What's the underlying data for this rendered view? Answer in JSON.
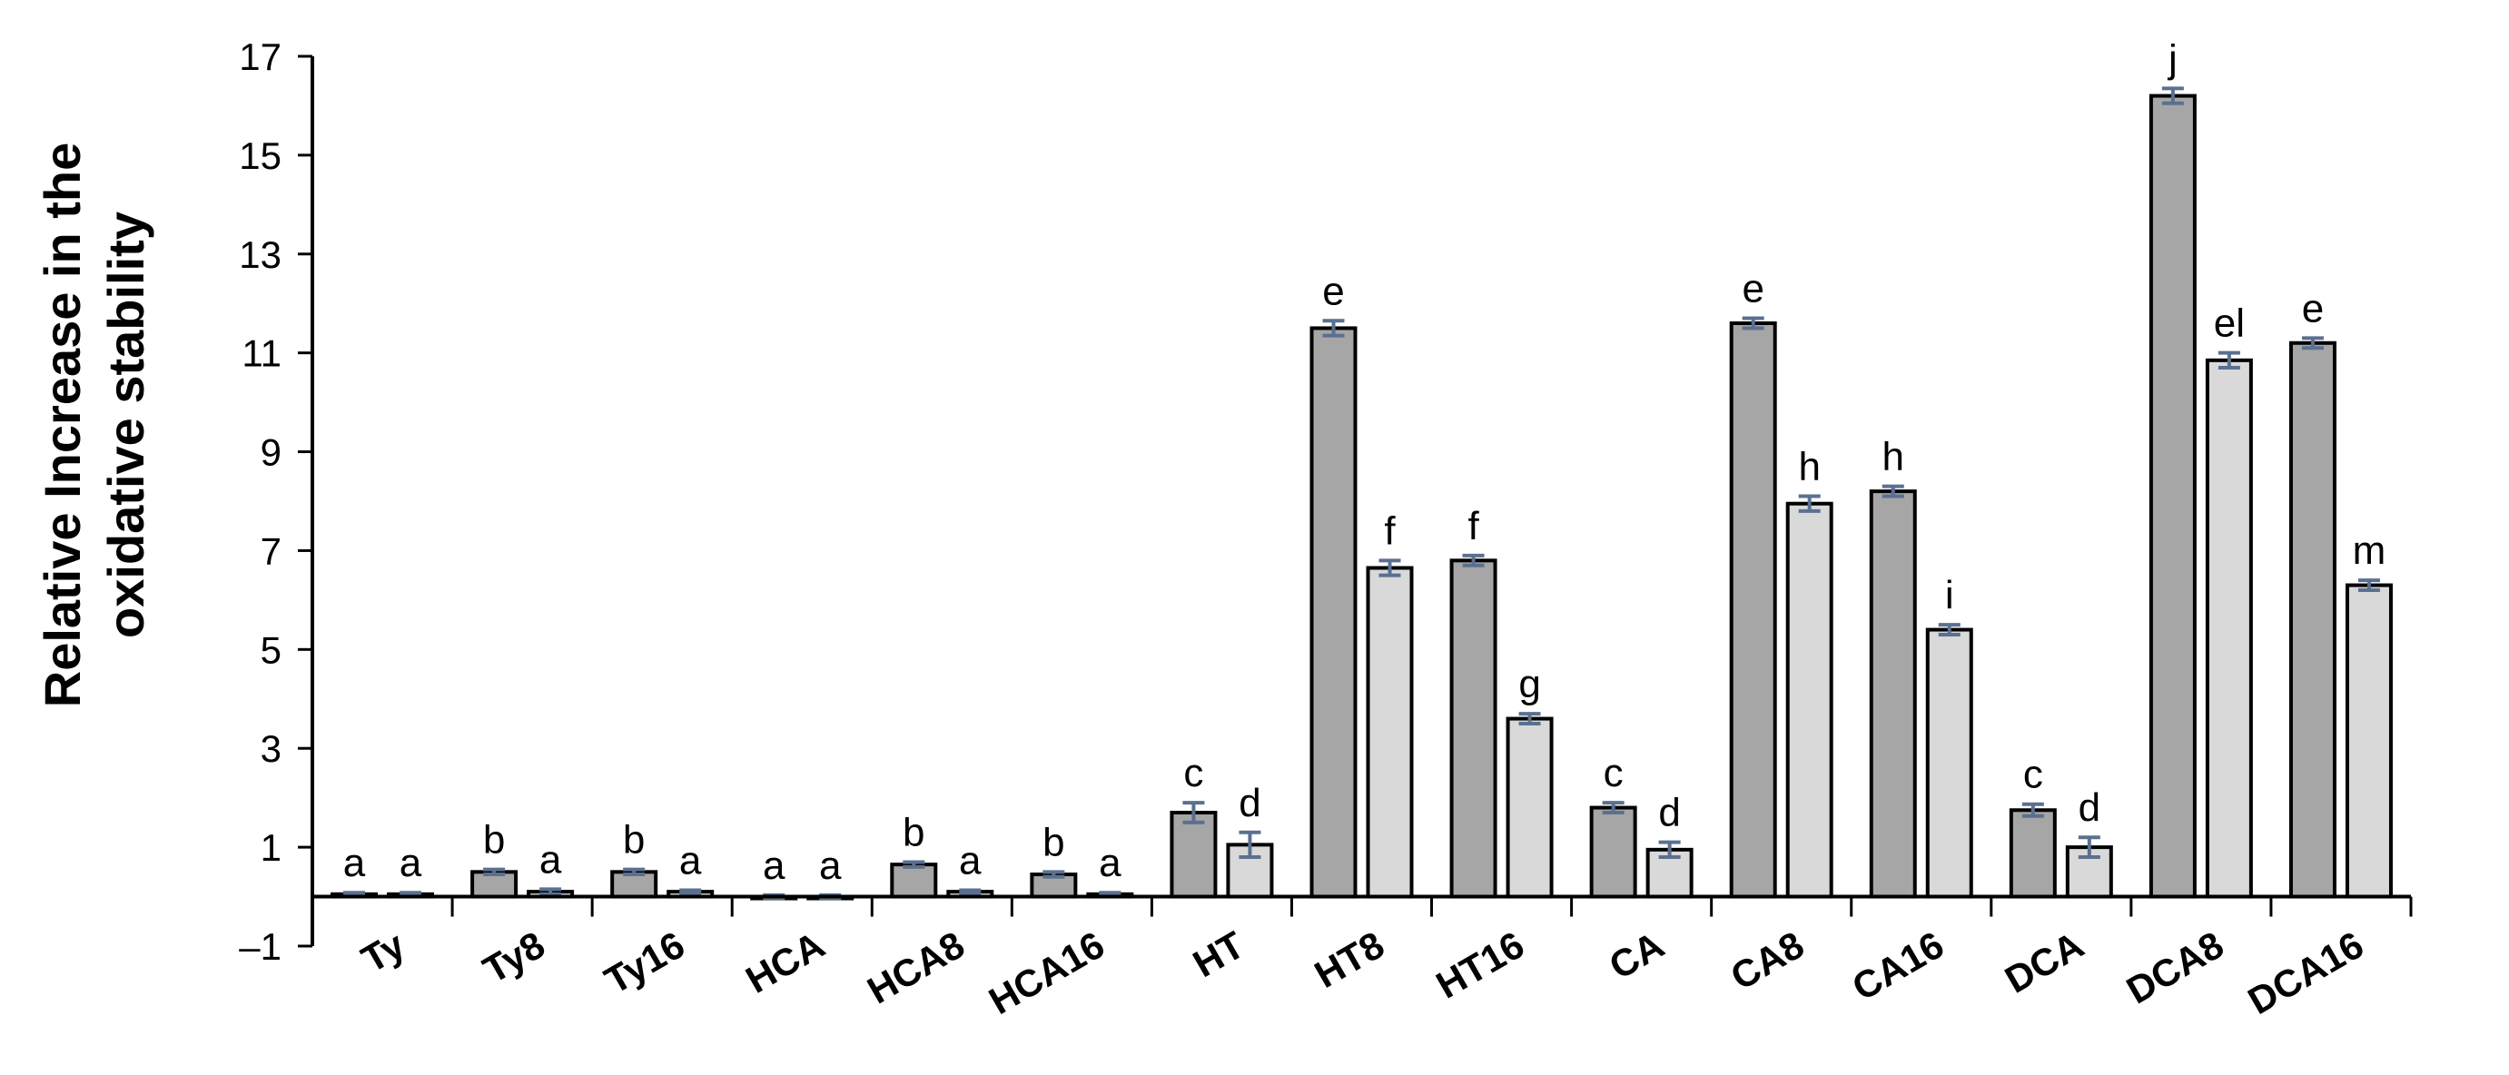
{
  "chart_data": {
    "type": "bar",
    "title": "",
    "xlabel": "",
    "ylabel_lines": [
      "Relative Increase in the",
      "oxidative stability"
    ],
    "ylim": [
      -1,
      17
    ],
    "yticks": [
      -1,
      1,
      3,
      5,
      7,
      9,
      11,
      13,
      15,
      17
    ],
    "ytick_labels": [
      "–1",
      "1",
      "3",
      "5",
      "7",
      "9",
      "11",
      "13",
      "15",
      "17"
    ],
    "grid": false,
    "legend": "none",
    "categories": [
      "Ty",
      "Ty8",
      "Ty16",
      "HCA",
      "HCA8",
      "HCA16",
      "HT",
      "HT8",
      "HT16",
      "CA",
      "CA8",
      "CA16",
      "DCA",
      "DCA8",
      "DCA16"
    ],
    "series": [
      {
        "color": "#a6a6a6",
        "values": [
          0.05,
          0.5,
          0.5,
          0.0,
          0.65,
          0.45,
          1.7,
          11.5,
          6.8,
          1.8,
          11.6,
          8.2,
          1.75,
          16.2,
          11.2
        ],
        "errors": [
          0.03,
          0.05,
          0.05,
          0.03,
          0.05,
          0.05,
          0.2,
          0.15,
          0.1,
          0.1,
          0.1,
          0.1,
          0.12,
          0.15,
          0.1
        ],
        "sig_labels": [
          "a",
          "b",
          "b",
          "a",
          "b",
          "b",
          "c",
          "e",
          "f",
          "c",
          "e",
          "h",
          "c",
          "j",
          "e"
        ]
      },
      {
        "color": "#d9d9d9",
        "values": [
          0.05,
          0.1,
          0.1,
          0.0,
          0.1,
          0.05,
          1.05,
          6.65,
          3.6,
          0.95,
          7.95,
          5.4,
          1.0,
          10.85,
          6.3
        ],
        "errors": [
          0.03,
          0.05,
          0.03,
          0.03,
          0.03,
          0.03,
          0.25,
          0.15,
          0.1,
          0.15,
          0.15,
          0.1,
          0.2,
          0.15,
          0.1
        ],
        "sig_labels": [
          "a",
          "a",
          "a",
          "a",
          "a",
          "a",
          "d",
          "f",
          "g",
          "d",
          "h",
          "i",
          "d",
          "el",
          "m"
        ]
      }
    ],
    "colors": {
      "bar_outline": "#000000",
      "error_bar": "#5b7090",
      "axis": "#000000"
    }
  }
}
